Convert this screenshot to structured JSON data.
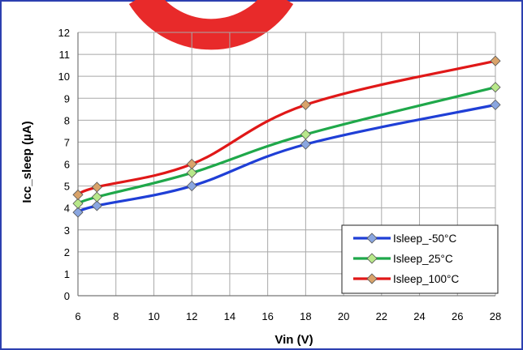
{
  "chart_data": {
    "type": "line",
    "title": "",
    "xlabel": "Vin (V)",
    "ylabel": "Icc_sleep (µA)",
    "xlim": [
      6,
      28
    ],
    "ylim": [
      0,
      12
    ],
    "xticks": [
      6,
      8,
      10,
      12,
      14,
      16,
      18,
      20,
      22,
      24,
      26,
      28
    ],
    "yticks": [
      0,
      1,
      2,
      3,
      4,
      5,
      6,
      7,
      8,
      9,
      10,
      11,
      12
    ],
    "grid": true,
    "legend_position": "bottom-right",
    "smooth": true,
    "series": [
      {
        "name": "Isleep_-50°C",
        "color": "#1f3fd6",
        "marker_color": "#8aa6e0",
        "x": [
          6,
          7,
          12,
          18,
          28
        ],
        "y": [
          3.8,
          4.1,
          5.0,
          6.9,
          8.7
        ]
      },
      {
        "name": "Isleep_25°C",
        "color": "#1fa84a",
        "marker_color": "#b8e88a",
        "x": [
          6,
          7,
          12,
          18,
          28
        ],
        "y": [
          4.2,
          4.5,
          5.6,
          7.35,
          9.5
        ]
      },
      {
        "name": "Isleep_100°C",
        "color": "#e01818",
        "marker_color": "#d9a36a",
        "x": [
          6,
          7,
          12,
          18,
          28
        ],
        "y": [
          4.6,
          4.95,
          6.0,
          8.7,
          10.7
        ]
      }
    ]
  },
  "decoration": {
    "watermark_color": "#e82a2a"
  }
}
